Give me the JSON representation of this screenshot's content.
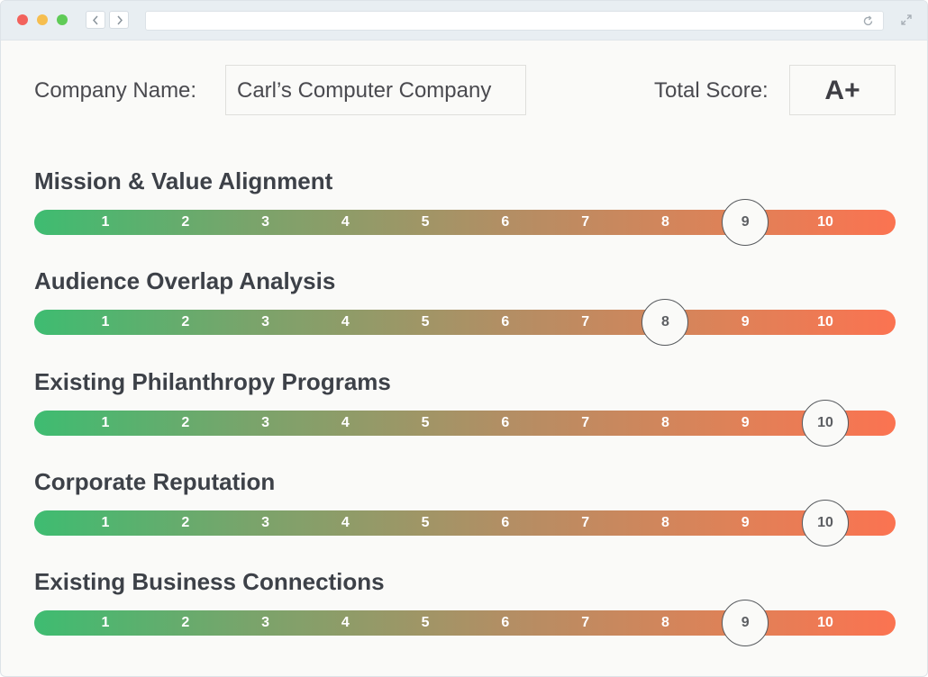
{
  "browser": {
    "traffic_lights": [
      "#f2625c",
      "#f6be4f",
      "#5fcb57"
    ]
  },
  "header": {
    "company_label": "Company Name:",
    "company_value": "Carl’s Computer Company",
    "score_label": "Total Score:",
    "score_value": "A+"
  },
  "scale": {
    "ticks": [
      "1",
      "2",
      "3",
      "4",
      "5",
      "6",
      "7",
      "8",
      "9",
      "10"
    ],
    "gradient_start": "#3ebc71",
    "gradient_end": "#fb7351"
  },
  "criteria": [
    {
      "title": "Mission & Value Alignment",
      "score": 9
    },
    {
      "title": "Audience Overlap Analysis",
      "score": 8
    },
    {
      "title": "Existing Philanthropy Programs",
      "score": 10
    },
    {
      "title": "Corporate Reputation",
      "score": 10
    },
    {
      "title": "Existing Business Connections",
      "score": 9
    }
  ]
}
